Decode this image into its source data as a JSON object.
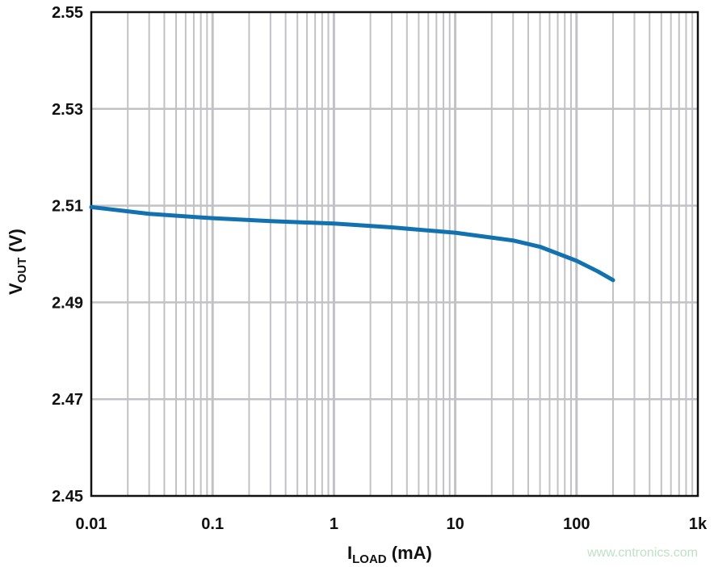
{
  "chart_data": {
    "type": "line",
    "xlabel": {
      "main": "I",
      "sub": "LOAD",
      "unit": " (mA)"
    },
    "ylabel": {
      "main": "V",
      "sub": "OUT",
      "unit": " (V)"
    },
    "x_scale": "log",
    "xlim": [
      0.01,
      1000
    ],
    "ylim": [
      2.45,
      2.55
    ],
    "x_ticks": [
      {
        "v": 0.01,
        "label": "0.01"
      },
      {
        "v": 0.1,
        "label": "0.1"
      },
      {
        "v": 1,
        "label": "1"
      },
      {
        "v": 10,
        "label": "10"
      },
      {
        "v": 100,
        "label": "100"
      },
      {
        "v": 1000,
        "label": "1k"
      }
    ],
    "y_ticks": [
      {
        "v": 2.45,
        "label": "2.45"
      },
      {
        "v": 2.47,
        "label": "2.47"
      },
      {
        "v": 2.49,
        "label": "2.49"
      },
      {
        "v": 2.51,
        "label": "2.51"
      },
      {
        "v": 2.53,
        "label": "2.53"
      },
      {
        "v": 2.55,
        "label": "2.55"
      }
    ],
    "grid": true,
    "line_color": "#1272b0",
    "series": [
      {
        "x": [
          0.01,
          0.03,
          0.1,
          0.3,
          1,
          3,
          10,
          30,
          50,
          100,
          150,
          200
        ],
        "y": [
          2.5097,
          2.5083,
          2.5074,
          2.5068,
          2.5063,
          2.5055,
          2.5044,
          2.5028,
          2.5015,
          2.4986,
          2.4964,
          2.4946
        ]
      }
    ]
  },
  "watermark": "www.cntronics.com"
}
